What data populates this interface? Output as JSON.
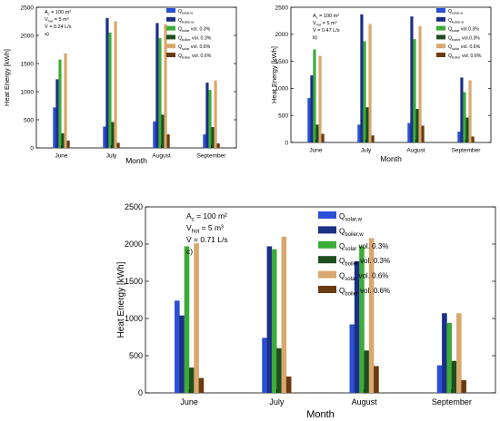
{
  "colors": {
    "q_solar_w": "#2b4fd6",
    "q_boiler_w": "#1c2f86",
    "q_solar_03": "#3dab3a",
    "q_boiler_03": "#1f4d1f",
    "q_solar_06": "#d8a86e",
    "q_boiler_06": "#6a3a12"
  },
  "chart_data": [
    {
      "type": "bar",
      "panel": "a)",
      "annotation": [
        "A_c = 100 m²",
        "V_hot = 5 m³",
        "V̇ = 0.24 L/s"
      ],
      "xlabel": "Month",
      "ylabel": "Heat Energy [kWh]",
      "ylim": [
        0,
        2500
      ],
      "yticks": [
        "0",
        "500",
        "1000",
        "1500",
        "2000",
        "2500"
      ],
      "categories": [
        "June",
        "July",
        "August",
        "September"
      ],
      "legend": [
        "Q_solar,w",
        "Q_boiler,w",
        "Q_solar vol. 0.3%",
        "Q_boiler vol. 0.3%",
        "Q_solar vol. 0.6%",
        "Q_boiler vol. 0.6%"
      ],
      "legend_position": "top-right",
      "series": [
        {
          "name": "Q_solar,w",
          "values": [
            720,
            380,
            470,
            240
          ]
        },
        {
          "name": "Q_boiler,w",
          "values": [
            1220,
            2310,
            2220,
            1160
          ]
        },
        {
          "name": "Q_solar vol. 0.3%",
          "values": [
            1570,
            2050,
            1950,
            1030
          ]
        },
        {
          "name": "Q_boiler vol. 0.3%",
          "values": [
            260,
            460,
            590,
            370
          ]
        },
        {
          "name": "Q_solar vol. 0.6%",
          "values": [
            1680,
            2250,
            2200,
            1200
          ]
        },
        {
          "name": "Q_boiler vol. 0.6%",
          "values": [
            130,
            90,
            240,
            80
          ]
        }
      ]
    },
    {
      "type": "bar",
      "panel": "b)",
      "annotation": [
        "A_c = 100 m²",
        "V_hot = 5 m³",
        "V̇ = 0.47 L/s"
      ],
      "xlabel": "Month",
      "ylabel": "Heat Energy [kWh]",
      "ylim": [
        0,
        2500
      ],
      "yticks": [
        "0",
        "500",
        "1000",
        "1500",
        "2000",
        "2500"
      ],
      "categories": [
        "June",
        "July",
        "August",
        "September"
      ],
      "legend": [
        "Q_solar,w",
        "Q_boiler,w",
        "Q_solar vol.0.3%",
        "Q_boiler vol.0.3%",
        "Q_solar vol. 0.6%",
        "Q_boiler vol. 0.6%"
      ],
      "legend_position": "top-right",
      "series": [
        {
          "name": "Q_solar,w",
          "values": [
            820,
            330,
            360,
            200
          ]
        },
        {
          "name": "Q_boiler,w",
          "values": [
            1240,
            2370,
            2330,
            1200
          ]
        },
        {
          "name": "Q_solar vol.0.3%",
          "values": [
            1720,
            1870,
            1910,
            930
          ]
        },
        {
          "name": "Q_boiler vol.0.3%",
          "values": [
            330,
            650,
            620,
            460
          ]
        },
        {
          "name": "Q_solar vol. 0.6%",
          "values": [
            1600,
            2190,
            2150,
            1150
          ]
        },
        {
          "name": "Q_boiler vol. 0.6%",
          "values": [
            160,
            130,
            310,
            110
          ]
        }
      ]
    },
    {
      "type": "bar",
      "panel": "c)",
      "annotation": [
        "A_c = 100 m²",
        "V_hot = 5 m³",
        "V̇ = 0.71 L/s"
      ],
      "xlabel": "Month",
      "ylabel": "Heat Energy [kWh]",
      "ylim": [
        0,
        2500
      ],
      "yticks": [
        "0",
        "500",
        "1000",
        "1500",
        "2000",
        "2500"
      ],
      "categories": [
        "June",
        "July",
        "August",
        "September"
      ],
      "legend": [
        "Q_solar,w",
        "Q_boiler,w",
        "Q_solar vol. 0.3%",
        "Q_boiler vol. 0.3%",
        "Q_solar vol. 0.6%",
        "Q_boiler vol. 0.6%"
      ],
      "legend_position": "top-right",
      "series": [
        {
          "name": "Q_solar,w",
          "values": [
            1240,
            740,
            920,
            370
          ]
        },
        {
          "name": "Q_boiler,w",
          "values": [
            1040,
            1970,
            1770,
            1070
          ]
        },
        {
          "name": "Q_solar vol. 0.3%",
          "values": [
            1970,
            1930,
            1970,
            940
          ]
        },
        {
          "name": "Q_boiler vol. 0.3%",
          "values": [
            340,
            600,
            570,
            430
          ]
        },
        {
          "name": "Q_solar vol. 0.6%",
          "values": [
            2010,
            2100,
            2080,
            1070
          ]
        },
        {
          "name": "Q_boiler vol. 0.6%",
          "values": [
            200,
            220,
            360,
            170
          ]
        }
      ]
    }
  ]
}
